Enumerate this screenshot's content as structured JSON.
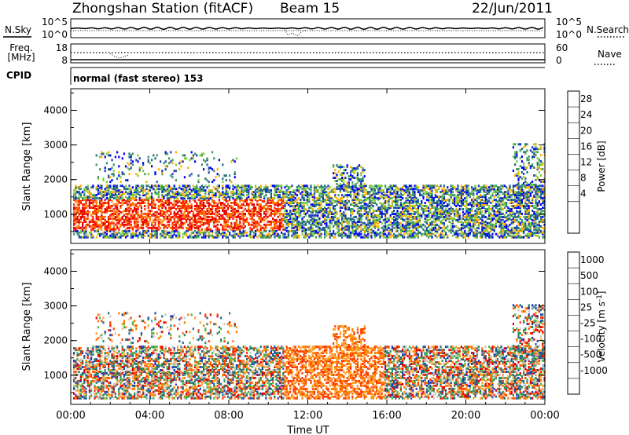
{
  "header": {
    "title": "Zhongshan Station (fitACF)",
    "beam": "Beam 15",
    "date": "22/Jun/2011"
  },
  "chart_data": [
    {
      "type": "line",
      "panel": "noise",
      "left_label": "N.Sky",
      "right_label": "N.Search",
      "left_ticks": [
        "10^5",
        "10^0"
      ],
      "right_ticks": [
        "10^5",
        "10^0"
      ],
      "series": [
        {
          "name": "N.Sky",
          "style": "solid"
        },
        {
          "name": "N.Search",
          "style": "dotted"
        }
      ]
    },
    {
      "type": "line",
      "panel": "frequency",
      "left_label_lines": [
        "Freq.",
        "[MHz]"
      ],
      "right_label": "Nave",
      "left_ticks": [
        "18",
        "8"
      ],
      "right_ticks": [
        "60",
        "0"
      ],
      "series": [
        {
          "name": "Freq.",
          "style": "solid"
        },
        {
          "name": "Nave",
          "style": "dotted"
        }
      ]
    },
    {
      "type": "text",
      "panel": "cpid",
      "label": "CPID",
      "text": "normal (fast stereo) 153"
    },
    {
      "type": "heatmap",
      "panel": "power",
      "ylabel": "Slant Range [km]",
      "y_ticks": [
        1000,
        2000,
        3000,
        4000
      ],
      "ylim": [
        180,
        4600
      ],
      "colorbar": {
        "label": "Power [dB]",
        "ticks": [
          "28",
          "24",
          "20",
          "16",
          "12",
          "8",
          "4"
        ],
        "colors": [
          "#e40000",
          "#ff2a00",
          "#ff7800",
          "#ffb000",
          "#7ecf3a",
          "#3a9a60",
          "#1f6e80",
          "#1f3fb0",
          "#0000ff"
        ]
      }
    },
    {
      "type": "heatmap",
      "panel": "velocity",
      "ylabel": "Slant Range [km]",
      "y_ticks": [
        1000,
        2000,
        3000,
        4000
      ],
      "ylim": [
        180,
        4600
      ],
      "colorbar": {
        "label": "Velocity [m s",
        "label_sup": "-1",
        "label_end": "]",
        "ticks": [
          "1000",
          "500",
          "100",
          "25",
          "-25",
          "-100",
          "-500",
          "-1000"
        ],
        "colors": [
          "#1f3fb0",
          "#1f6e80",
          "#2f8a60",
          "#4fb24f",
          "#c8c8c8",
          "#ffa024",
          "#ff7800",
          "#ff3a00",
          "#e40000"
        ]
      }
    }
  ],
  "x_axis": {
    "label": "Time UT",
    "ticks": [
      "00:00",
      "04:00",
      "08:00",
      "12:00",
      "16:00",
      "20:00",
      "00:00"
    ]
  }
}
